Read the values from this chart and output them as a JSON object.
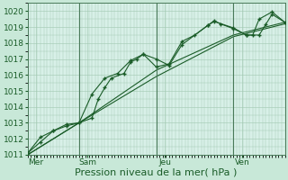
{
  "bg_color": "#c8e8d8",
  "plot_bg_color": "#d8f0e8",
  "grid_color": "#a0c8b0",
  "line_color": "#1a5c28",
  "marker_color": "#1a5c28",
  "vline_color": "#4a7a5a",
  "xlabel": "Pression niveau de la mer( hPa )",
  "xlabel_fontsize": 8,
  "tick_fontsize": 6.5,
  "ylim": [
    1011,
    1020.5
  ],
  "yticks": [
    1011,
    1012,
    1013,
    1014,
    1015,
    1016,
    1017,
    1018,
    1019,
    1020
  ],
  "xlim": [
    0,
    240
  ],
  "day_positions": [
    8,
    56,
    128,
    200
  ],
  "day_labels": [
    "Mer",
    "Sam",
    "Jeu",
    "Ven"
  ],
  "vline_positions": [
    48,
    120,
    192
  ],
  "series1_x": [
    0,
    12,
    24,
    36,
    48,
    60,
    72,
    84,
    96,
    108,
    120,
    132,
    144,
    156,
    168,
    174,
    180,
    192,
    204,
    210,
    216,
    228,
    240
  ],
  "series1_y": [
    1011.1,
    1011.8,
    1012.5,
    1012.9,
    1013.0,
    1014.8,
    1015.8,
    1016.1,
    1016.9,
    1017.3,
    1016.5,
    1016.7,
    1018.1,
    1018.5,
    1019.1,
    1019.4,
    1019.2,
    1018.9,
    1018.5,
    1018.5,
    1019.5,
    1019.95,
    1019.3
  ],
  "series2_x": [
    0,
    12,
    24,
    36,
    48,
    60,
    66,
    72,
    78,
    90,
    96,
    102,
    108,
    120,
    132,
    144,
    168,
    174,
    192,
    204,
    216,
    222,
    228,
    240
  ],
  "series2_y": [
    1011.1,
    1012.1,
    1012.5,
    1012.8,
    1013.0,
    1013.3,
    1014.5,
    1015.2,
    1015.8,
    1016.1,
    1016.8,
    1017.0,
    1017.3,
    1017.0,
    1016.6,
    1017.9,
    1019.1,
    1019.35,
    1018.95,
    1018.5,
    1018.5,
    1019.15,
    1019.8,
    1019.3
  ],
  "series3_x": [
    0,
    48,
    120,
    192,
    240
  ],
  "series3_y": [
    1011.0,
    1013.0,
    1016.3,
    1018.5,
    1019.3
  ],
  "series4_x": [
    0,
    48,
    120,
    192,
    240
  ],
  "series4_y": [
    1011.0,
    1013.0,
    1015.9,
    1018.4,
    1019.2
  ]
}
